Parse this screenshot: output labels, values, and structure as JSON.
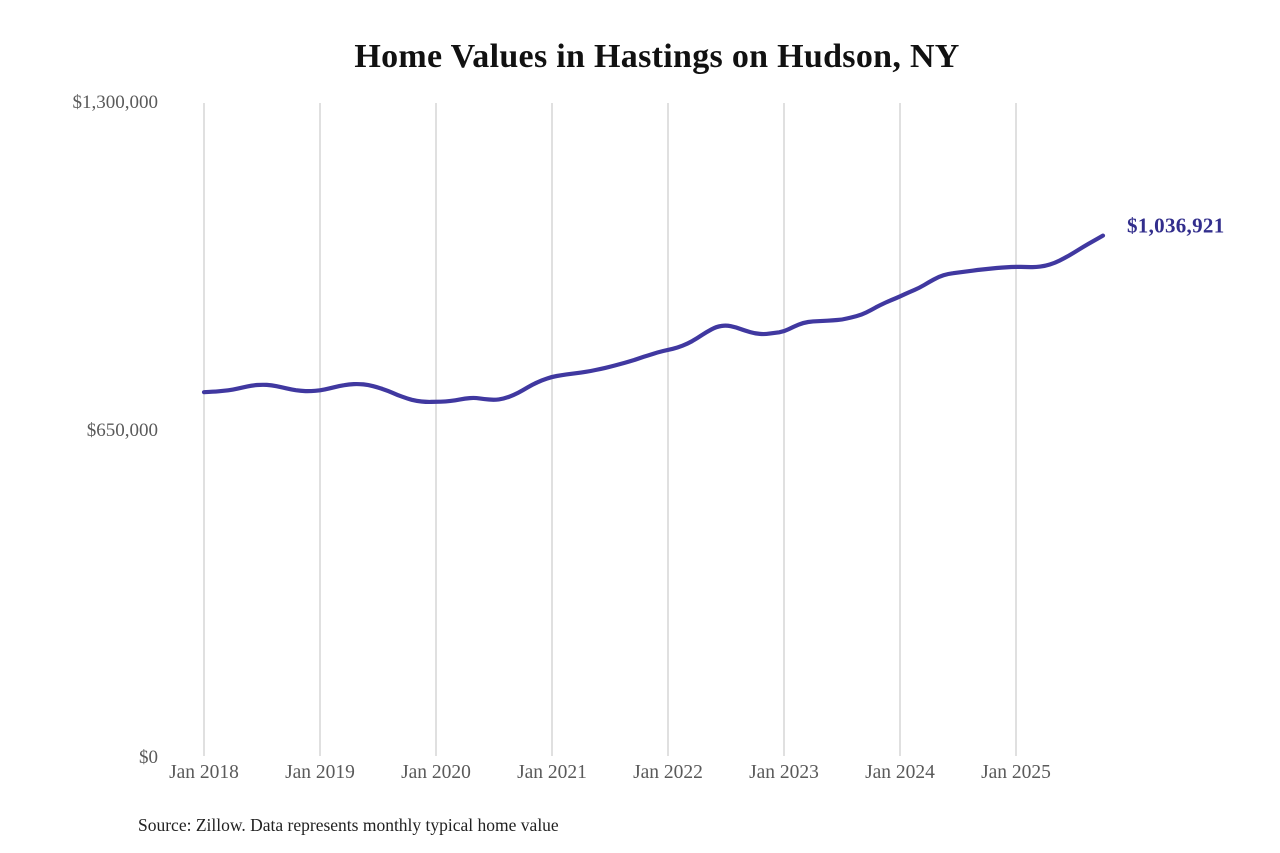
{
  "title": "Home Values in Hastings on Hudson, NY",
  "source_note": "Source: Zillow. Data represents monthly typical home value",
  "colors": {
    "background": "#ffffff",
    "line": "#4038a0",
    "end_label": "#322e8c",
    "grid": "#cccccc",
    "tick_text": "#5a5a5a",
    "title_text": "#111111",
    "source_text": "#222222"
  },
  "chart_data": {
    "type": "line",
    "title": "Home Values in Hastings on Hudson, NY",
    "xlabel": "",
    "ylabel": "",
    "ylim": [
      0,
      1300000
    ],
    "grid": "vertical-only",
    "legend": "none",
    "frequency": "monthly",
    "x_start": "Jan 2018",
    "x_end": "Oct 2025",
    "x_ticks": [
      "Jan 2018",
      "Jan 2019",
      "Jan 2020",
      "Jan 2021",
      "Jan 2022",
      "Jan 2023",
      "Jan 2024",
      "Jan 2025"
    ],
    "y_ticks": [
      {
        "label": "$1,300,000",
        "value": 1300000
      },
      {
        "label": "$650,000",
        "value": 650000
      },
      {
        "label": "$0",
        "value": 0
      }
    ],
    "latest_value": 1036921,
    "latest_value_label": "$1,036,921",
    "series": [
      {
        "name": "Monthly typical home value",
        "values": [
          726000,
          727000,
          728500,
          731000,
          735500,
          739500,
          741000,
          740000,
          736000,
          731500,
          728500,
          728000,
          729500,
          733500,
          738500,
          741500,
          742500,
          740500,
          735500,
          729000,
          720500,
          713500,
          708500,
          706500,
          707000,
          707500,
          710000,
          713500,
          715000,
          712500,
          710500,
          713000,
          720000,
          730000,
          741500,
          750000,
          756500,
          760000,
          762500,
          765000,
          768000,
          772000,
          776500,
          781500,
          787000,
          793000,
          799500,
          805500,
          810000,
          814500,
          822000,
          833000,
          845500,
          856000,
          859000,
          855000,
          848000,
          842500,
          841000,
          843500,
          846500,
          856000,
          864000,
          866500,
          867500,
          868500,
          870000,
          874500,
          879500,
          889000,
          899500,
          908000,
          916000,
          925000,
          933000,
          944500,
          955000,
          961000,
          963500,
          966000,
          968500,
          970500,
          972500,
          974000,
          975000,
          974500,
          974000,
          976500,
          982500,
          992000,
          1003000,
          1015000,
          1026000,
          1036921
        ]
      }
    ]
  }
}
